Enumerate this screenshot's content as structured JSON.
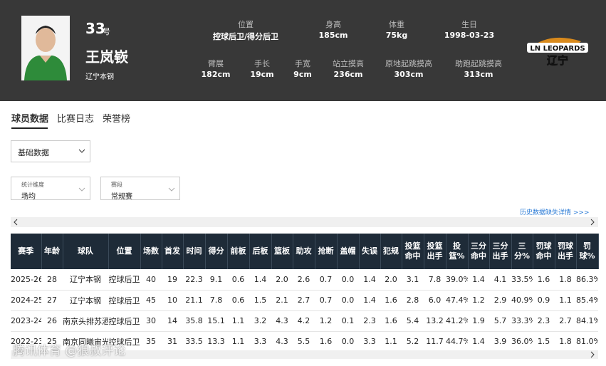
{
  "header": {
    "number": "33",
    "number_suffix": "号",
    "name": "王岚嵚",
    "team": "辽宁本钢",
    "info_row1": [
      {
        "label": "位置",
        "value": "控球后卫/得分后卫"
      },
      {
        "label": "身高",
        "value": "185cm"
      },
      {
        "label": "体重",
        "value": "75kg"
      },
      {
        "label": "生日",
        "value": "1998-03-23"
      }
    ],
    "info_row2": [
      {
        "label": "臂展",
        "value": "182cm"
      },
      {
        "label": "手长",
        "value": "19cm"
      },
      {
        "label": "手宽",
        "value": "9cm"
      },
      {
        "label": "站立摸高",
        "value": "236cm"
      },
      {
        "label": "原地起跳摸高",
        "value": "303cm"
      },
      {
        "label": "助跑起跳摸高",
        "value": "313cm"
      }
    ],
    "logo_text": "LN LEOPARDS",
    "logo_subtext": "辽宁"
  },
  "tabs": [
    "球员数据",
    "比赛日志",
    "荣誉榜"
  ],
  "filters": {
    "data_type": "基础数据",
    "dimension": {
      "label": "统计维度",
      "value": "场均"
    },
    "stage": {
      "label": "赛段",
      "value": "常规赛"
    }
  },
  "history_link": "历史数据缺失详情 >>>",
  "table": {
    "columns": [
      "赛季",
      "年龄",
      "球队",
      "位置",
      "场数",
      "首发",
      "时间",
      "得分",
      "前板",
      "后板",
      "篮板",
      "助攻",
      "抢断",
      "盖帽",
      "失误",
      "犯规",
      "投篮命中",
      "投篮出手",
      "投篮%",
      "三分命中",
      "三分出手",
      "三分%",
      "罚球命中",
      "罚球出手",
      "罚球%"
    ],
    "rows": [
      [
        "2025-26",
        "28",
        "辽宁本钢",
        "控球后卫",
        "40",
        "19",
        "22.3",
        "9.1",
        "0.6",
        "1.4",
        "2.0",
        "2.6",
        "0.7",
        "0.0",
        "1.4",
        "2.0",
        "3.1",
        "7.8",
        "39.0%",
        "1.4",
        "4.1",
        "33.5%",
        "1.6",
        "1.8",
        "86.3%"
      ],
      [
        "2024-25",
        "27",
        "辽宁本钢",
        "控球后卫",
        "45",
        "10",
        "21.1",
        "7.8",
        "0.6",
        "1.5",
        "2.1",
        "2.7",
        "0.7",
        "0.0",
        "1.4",
        "1.6",
        "2.8",
        "6.0",
        "47.4%",
        "1.2",
        "2.9",
        "40.9%",
        "0.9",
        "1.1",
        "85.4%"
      ],
      [
        "2023-24",
        "26",
        "南京头排苏酒",
        "控球后卫",
        "30",
        "14",
        "35.8",
        "15.1",
        "1.1",
        "3.2",
        "4.3",
        "4.2",
        "1.2",
        "0.1",
        "2.3",
        "1.6",
        "5.4",
        "13.2",
        "41.2%",
        "1.9",
        "5.7",
        "33.3%",
        "2.3",
        "2.7",
        "84.1%"
      ],
      [
        "2022-23",
        "25",
        "南京同曦宙光",
        "控球后卫",
        "35",
        "31",
        "33.5",
        "13.3",
        "1.1",
        "3.3",
        "4.3",
        "5.5",
        "1.6",
        "0.0",
        "3.3",
        "1.1",
        "5.2",
        "11.7",
        "44.7%",
        "1.4",
        "3.9",
        "36.0%",
        "1.5",
        "1.8",
        "81.0%"
      ]
    ]
  },
  "watermark": "腾讯体育 @狼叔评论"
}
